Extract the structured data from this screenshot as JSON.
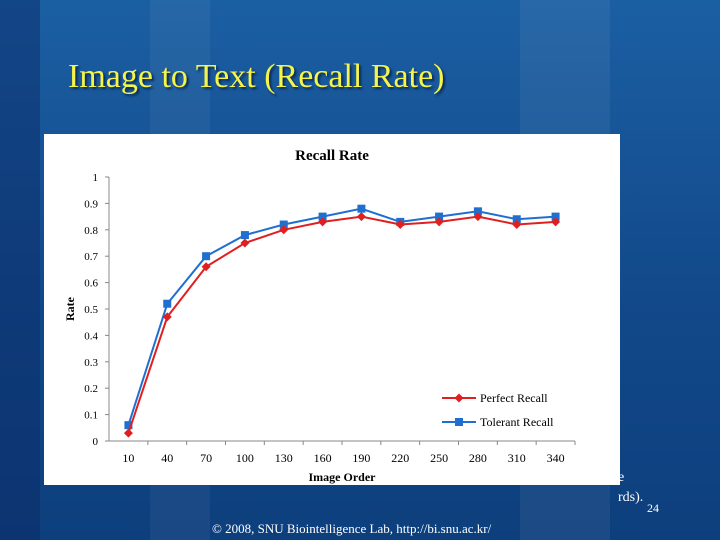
{
  "slide": {
    "title": "Image to Text (Recall Rate)",
    "partial_text_1": "e",
    "partial_text_2": "rds).",
    "page_number": "24",
    "footer": "© 2008, SNU Biointelligence Lab, http://bi.snu.ac.kr/"
  },
  "colors": {
    "perfect": "#e02020",
    "tolerant": "#1f6fd1"
  },
  "chart_data": {
    "type": "line",
    "title": "Recall Rate",
    "xlabel": "Image Order",
    "ylabel": "Rate",
    "ylim": [
      0,
      1
    ],
    "yticks": [
      "0",
      "0.1",
      "0.2",
      "0.3",
      "0.4",
      "0.5",
      "0.6",
      "0.7",
      "0.8",
      "0.9",
      "1"
    ],
    "categories": [
      "10",
      "40",
      "70",
      "100",
      "130",
      "160",
      "190",
      "220",
      "250",
      "280",
      "310",
      "340"
    ],
    "legend": "bottom-right",
    "grid": false,
    "series": [
      {
        "name": "Perfect Recall",
        "values": [
          0.03,
          0.47,
          0.66,
          0.75,
          0.8,
          0.83,
          0.85,
          0.82,
          0.83,
          0.85,
          0.82,
          0.83
        ]
      },
      {
        "name": "Tolerant Recall",
        "values": [
          0.06,
          0.52,
          0.7,
          0.78,
          0.82,
          0.85,
          0.88,
          0.83,
          0.85,
          0.87,
          0.84,
          0.85
        ]
      }
    ]
  }
}
